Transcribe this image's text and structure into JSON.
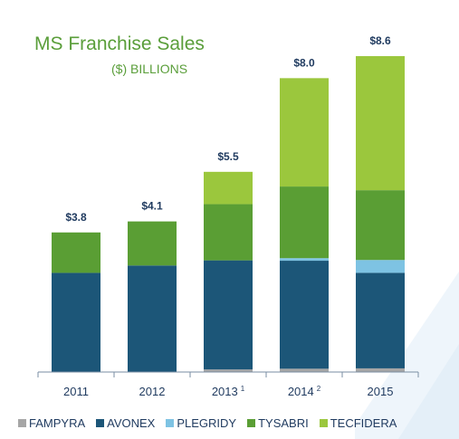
{
  "chart_data": {
    "type": "bar",
    "stacked": true,
    "title": "MS Franchise Sales",
    "subtitle": "($) BILLIONS",
    "categories": [
      "2011",
      "2012",
      "2013",
      "2014",
      "2015"
    ],
    "category_superscripts": [
      "",
      "",
      "1",
      "2",
      ""
    ],
    "totals": [
      "$3.8",
      "$4.1",
      "$5.5",
      "$8.0",
      "$8.6"
    ],
    "series": [
      {
        "name": "FAMPYRA",
        "color": "#a6a6a6",
        "values": [
          0.0,
          0.0,
          0.07,
          0.09,
          0.1
        ]
      },
      {
        "name": "AVONEX",
        "color": "#1c5678",
        "values": [
          2.7,
          2.9,
          2.97,
          2.94,
          2.6
        ]
      },
      {
        "name": "PLEGRIDY",
        "color": "#7ec3e3",
        "values": [
          0.0,
          0.0,
          0.0,
          0.07,
          0.35
        ]
      },
      {
        "name": "TYSABRI",
        "color": "#5a9e34",
        "values": [
          1.1,
          1.2,
          1.53,
          1.95,
          1.9
        ]
      },
      {
        "name": "TECFIDERA",
        "color": "#9bc73d",
        "values": [
          0.0,
          0.0,
          0.88,
          2.95,
          3.65
        ]
      }
    ],
    "ylim": [
      0,
      8.6
    ],
    "grid": false,
    "legend_position": "bottom"
  }
}
